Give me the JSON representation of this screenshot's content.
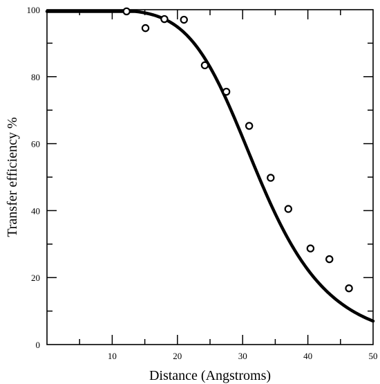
{
  "chart_data": {
    "type": "scatter",
    "title": "",
    "xlabel": "Distance (Angstroms)",
    "ylabel": "Transfer efficiency %",
    "xlim": [
      0,
      50
    ],
    "ylim": [
      0,
      100
    ],
    "x_ticks": [
      10,
      20,
      30,
      40,
      50
    ],
    "y_ticks": [
      0,
      20,
      40,
      60,
      80,
      100
    ],
    "x_tick_labels": [
      "10",
      "20",
      "30",
      "40",
      "50"
    ],
    "y_tick_labels": [
      "0",
      "20",
      "40",
      "60",
      "80",
      "100"
    ],
    "grid": false,
    "legend": "none",
    "series": [
      {
        "kind": "points",
        "marker": "open-circle",
        "x": [
          12.2,
          15.1,
          18.0,
          21.0,
          24.2,
          27.5,
          31.0,
          34.3,
          37.0,
          40.4,
          43.3,
          46.3
        ],
        "y": [
          99.5,
          94.5,
          97.2,
          97.0,
          83.4,
          75.5,
          65.3,
          49.8,
          40.5,
          28.7,
          25.5,
          16.8
        ]
      },
      {
        "kind": "curve",
        "description": "Forster fit E = 1/(1+(r/R0)^6)",
        "R0": 32.5,
        "x_range": [
          0,
          50
        ]
      }
    ]
  }
}
